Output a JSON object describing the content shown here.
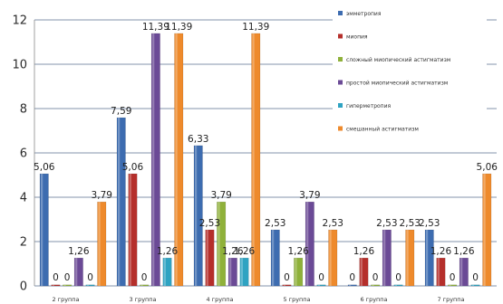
{
  "chart_data": {
    "type": "bar",
    "categories": [
      "2 группа",
      "3 группа",
      "4 группа",
      "5 группа",
      "6 группа",
      "7 группа"
    ],
    "ylim": [
      0,
      12
    ],
    "yticks": [
      0,
      2,
      4,
      6,
      8,
      10,
      12
    ],
    "grid": true,
    "legend_position": "top-right",
    "series": [
      {
        "name": "эмметропия",
        "color": "#3d6cb0",
        "values": [
          5.06,
          7.59,
          6.33,
          2.53,
          0,
          2.53
        ],
        "labels": [
          "5,06",
          "7,59",
          "6,33",
          "2,53",
          "0",
          "2,53"
        ]
      },
      {
        "name": "миопия",
        "color": "#b52f2b",
        "values": [
          0,
          5.06,
          2.53,
          0,
          1.26,
          1.26
        ],
        "labels": [
          "0",
          "5,06",
          "2,53",
          "0",
          "1,26",
          "1,26"
        ]
      },
      {
        "name": "сложный миопический астигматизм",
        "color": "#8fb13a",
        "values": [
          0,
          0,
          3.79,
          1.26,
          0,
          0
        ],
        "labels": [
          "0",
          "0",
          "3,79",
          "1,26",
          "0",
          "0"
        ]
      },
      {
        "name": "простой миопический астигматизм",
        "color": "#6b4a96",
        "values": [
          1.26,
          11.39,
          1.26,
          3.79,
          2.53,
          1.26
        ],
        "labels": [
          "1,26",
          "11,39",
          "1,26",
          "3,79",
          "2,53",
          "1,26"
        ]
      },
      {
        "name": "гиперметропия",
        "color": "#2fa3c2",
        "values": [
          0,
          1.26,
          1.26,
          0,
          0,
          0
        ],
        "labels": [
          "0",
          "1,26",
          "1,26",
          "0",
          "0",
          "0"
        ]
      },
      {
        "name": "смешанный астигматизм",
        "color": "#ee8a2c",
        "values": [
          3.79,
          11.39,
          11.39,
          2.53,
          2.53,
          5.06
        ],
        "labels": [
          "3,79",
          "11,39",
          "11,39",
          "2,53",
          "2,53",
          "5,06"
        ]
      }
    ]
  }
}
